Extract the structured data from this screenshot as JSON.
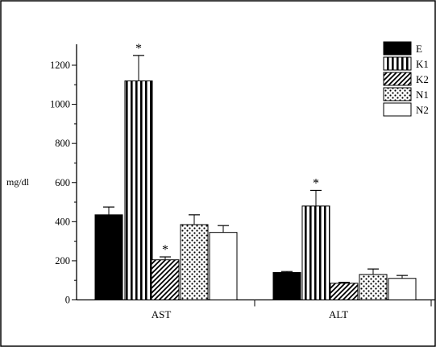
{
  "chart_data": {
    "type": "bar",
    "ylabel": "mg/dl",
    "ylim": [
      0,
      1300
    ],
    "yticks": [
      0,
      200,
      400,
      600,
      800,
      1000,
      1200
    ],
    "categories": [
      "AST",
      "ALT"
    ],
    "series": [
      {
        "name": "E",
        "fill": "solid-black",
        "values": [
          435,
          140
        ],
        "errors": [
          40,
          5
        ]
      },
      {
        "name": "K1",
        "fill": "vertical-stripes",
        "values": [
          1120,
          480
        ],
        "errors": [
          130,
          80
        ]
      },
      {
        "name": "K2",
        "fill": "diagonal-hatch",
        "values": [
          205,
          85
        ],
        "errors": [
          15,
          5
        ]
      },
      {
        "name": "N1",
        "fill": "dots",
        "values": [
          385,
          130
        ],
        "errors": [
          50,
          28
        ]
      },
      {
        "name": "N2",
        "fill": "white",
        "values": [
          345,
          110
        ],
        "errors": [
          35,
          15
        ]
      }
    ],
    "significance_marker": "*",
    "significant": [
      {
        "category": "AST",
        "series": "K1"
      },
      {
        "category": "AST",
        "series": "K2"
      },
      {
        "category": "ALT",
        "series": "K1"
      }
    ],
    "legend_position": "top-right",
    "grid": false
  }
}
